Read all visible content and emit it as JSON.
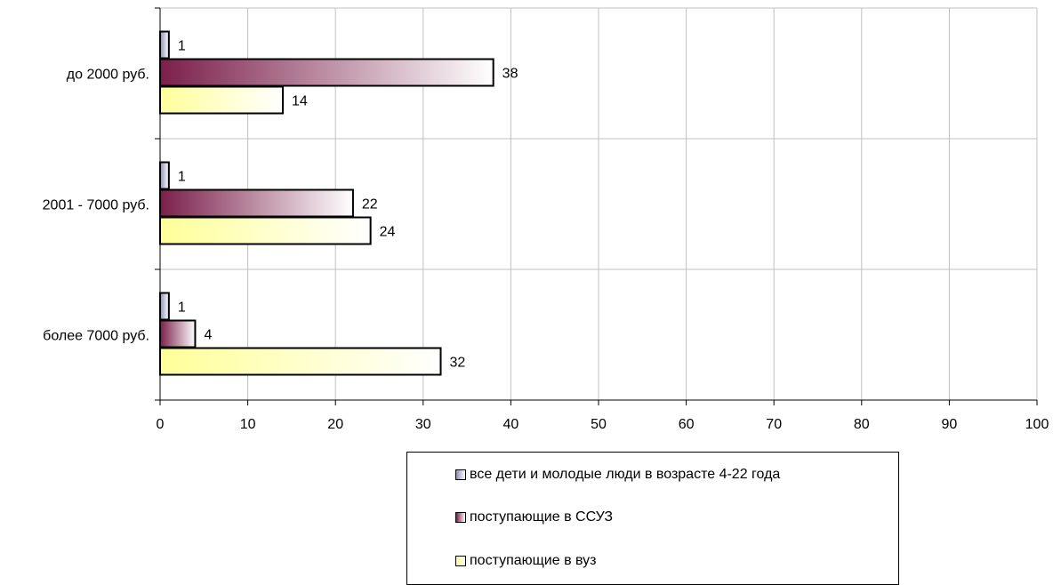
{
  "chart_data": {
    "type": "bar",
    "orientation": "horizontal",
    "categories": [
      "до 2000 руб.",
      "2001 - 7000 руб.",
      "более 7000 руб."
    ],
    "series": [
      {
        "name": "все дети и молодые люди в возрасте 4-22 года",
        "values": [
          1,
          1,
          1
        ],
        "color_dark": "#8f8fb8",
        "color_light": "#ffffff"
      },
      {
        "name": "поступающие в ССУЗ",
        "values": [
          38,
          22,
          4
        ],
        "color_dark": "#7a1f4a",
        "color_light": "#ffffff"
      },
      {
        "name": "поступающие в вуз",
        "values": [
          14,
          24,
          32
        ],
        "color_dark": "#ffff99",
        "color_light": "#ffffff"
      }
    ],
    "data_labels": [
      [
        "1",
        "1",
        "1"
      ],
      [
        "38",
        "22",
        "4"
      ],
      [
        "14",
        "24",
        "32"
      ]
    ],
    "x_ticks": [
      "0",
      "10",
      "20",
      "30",
      "40",
      "50",
      "60",
      "70",
      "80",
      "90",
      "100"
    ],
    "xlim": [
      0,
      100
    ],
    "grid": true,
    "legend_position": "bottom"
  }
}
